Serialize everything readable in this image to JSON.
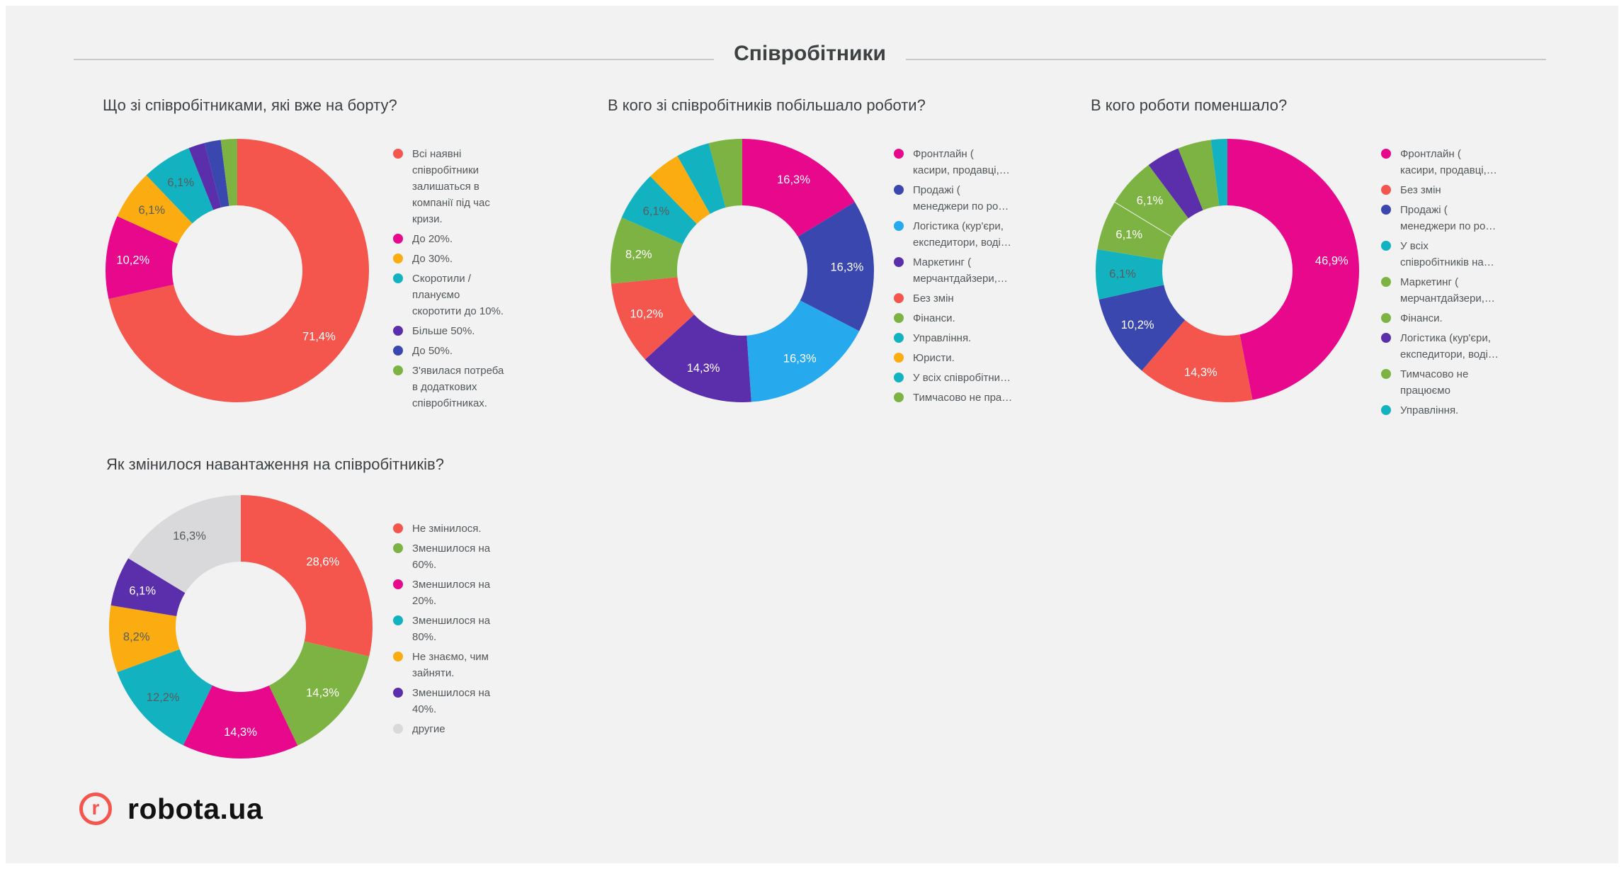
{
  "page": {
    "title": "Співробітники",
    "background": "#f2f2f3"
  },
  "colors": {
    "background": "#f2f2f3",
    "header_rule": "#c9c9ca",
    "chart_title_text": "#3d4144",
    "legend_text": "#53585b",
    "label_light": "#ffffff",
    "label_dark": "#575c5e",
    "brand_red": "#f4564e",
    "logo_text": "#121212"
  },
  "logo": {
    "mark": "r",
    "text": "robota.ua",
    "color": "#f4564e"
  },
  "chart_data": [
    {
      "type": "pie",
      "donut": true,
      "legend_position": "right",
      "unit": "%",
      "title": "Що зі співробітниками, які вже на борту?",
      "slices": [
        {
          "legend": "Всі наявні\nспівробітники\nзалишаться в\nкомпанії під час\nкризи.",
          "value": 71.4,
          "display": "71,4%",
          "color": "#f4564e",
          "label_tone": "light"
        },
        {
          "legend": "До 20%.",
          "value": 10.2,
          "display": "10,2%",
          "color": "#e8088c",
          "label_tone": "light"
        },
        {
          "legend": "До 30%.",
          "value": 6.1,
          "display": "6,1%",
          "color": "#fbac10",
          "label_tone": "dark"
        },
        {
          "legend": "Скоротили /\nплануємо\nскоротити до 10%.",
          "value": 6.1,
          "display": "6,1%",
          "color": "#13b2c1",
          "label_tone": "dark"
        },
        {
          "legend": "Більше 50%.",
          "value": 2.0,
          "display": null,
          "color": "#5b2fac",
          "label_tone": "light"
        },
        {
          "legend": "До 50%.",
          "value": 2.0,
          "display": null,
          "color": "#3a47ae",
          "label_tone": "light"
        },
        {
          "legend": "З'явилася потреба\nв додаткових\nспівробітниках.",
          "value": 2.0,
          "display": null,
          "color": "#7cb342",
          "label_tone": "light"
        }
      ]
    },
    {
      "type": "pie",
      "donut": true,
      "legend_position": "right",
      "unit": "%",
      "title": "В кого зі співробітників побільшало роботи?",
      "slices": [
        {
          "legend": "Фронтлайн (\nкасири, продавці,…",
          "value": 16.3,
          "display": "16,3%",
          "color": "#e8088c",
          "label_tone": "light"
        },
        {
          "legend": "Продажі (\nменеджери по ро…",
          "value": 16.3,
          "display": "16,3%",
          "color": "#3a47ae",
          "label_tone": "light"
        },
        {
          "legend": "Логістика (кур'єри,\nекспедитори, воді…",
          "value": 16.3,
          "display": "16,3%",
          "color": "#27a9ee",
          "label_tone": "light"
        },
        {
          "legend": "Маркетинг (\nмерчантдайзери,…",
          "value": 14.3,
          "display": "14,3%",
          "color": "#5b2fac",
          "label_tone": "light"
        },
        {
          "legend": "Без змін",
          "value": 10.2,
          "display": "10,2%",
          "color": "#f4564e",
          "label_tone": "light"
        },
        {
          "legend": "Фінанси.",
          "value": 8.2,
          "display": "8,2%",
          "color": "#7cb342",
          "label_tone": "light"
        },
        {
          "legend": "Управління.",
          "value": 6.1,
          "display": "6,1%",
          "color": "#13b2c1",
          "label_tone": "dark"
        },
        {
          "legend": "Юристи.",
          "value": 4.1,
          "display": null,
          "color": "#fbac10",
          "label_tone": "dark"
        },
        {
          "legend": "У всіх співробітни…",
          "value": 4.1,
          "display": null,
          "color": "#13b2c1",
          "label_tone": "dark"
        },
        {
          "legend": "Тимчасово не пра…",
          "value": 4.1,
          "display": null,
          "color": "#7cb342",
          "label_tone": "light"
        }
      ]
    },
    {
      "type": "pie",
      "donut": true,
      "legend_position": "right",
      "unit": "%",
      "title": "В кого роботи поменшало?",
      "slices": [
        {
          "legend": "Фронтлайн (\nкасири, продавці,…",
          "value": 46.9,
          "display": "46,9%",
          "color": "#e8088c",
          "label_tone": "light"
        },
        {
          "legend": "Без змін",
          "value": 14.3,
          "display": "14,3%",
          "color": "#f4564e",
          "label_tone": "light"
        },
        {
          "legend": "Продажі (\nменеджери по ро…",
          "value": 10.2,
          "display": "10,2%",
          "color": "#3a47ae",
          "label_tone": "light"
        },
        {
          "legend": "У всіх\nспівробітників на…",
          "value": 6.1,
          "display": "6,1%",
          "color": "#13b2c1",
          "label_tone": "dark"
        },
        {
          "legend": "Маркетинг (\nмерчантдайзери,…",
          "value": 6.1,
          "display": "6,1%",
          "color": "#7cb342",
          "label_tone": "light"
        },
        {
          "legend": "Фінанси.",
          "value": 6.1,
          "display": "6,1%",
          "color": "#7cb342",
          "label_tone": "light"
        },
        {
          "legend": "Логістика (кур'єри,\nекспедитори, воді…",
          "value": 4.1,
          "display": null,
          "color": "#5b2fac",
          "label_tone": "light"
        },
        {
          "legend": "Тимчасово не\nпрацюємо",
          "value": 4.1,
          "display": null,
          "color": "#7cb342",
          "label_tone": "light"
        },
        {
          "legend": "Управління.",
          "value": 2.0,
          "display": null,
          "color": "#13b2c1",
          "label_tone": "dark"
        }
      ]
    },
    {
      "type": "pie",
      "donut": true,
      "legend_position": "right",
      "unit": "%",
      "title": "Як змінилося навантаження на співробітників?",
      "slices": [
        {
          "legend": "Не змінилося.",
          "value": 28.6,
          "display": "28,6%",
          "color": "#f4564e",
          "label_tone": "light"
        },
        {
          "legend": "Зменшилося на\n60%.",
          "value": 14.3,
          "display": "14,3%",
          "color": "#7cb342",
          "label_tone": "light"
        },
        {
          "legend": "Зменшилося на\n20%.",
          "value": 14.3,
          "display": "14,3%",
          "color": "#e8088c",
          "label_tone": "light"
        },
        {
          "legend": "Зменшилося на\n80%.",
          "value": 12.2,
          "display": "12,2%",
          "color": "#13b2c1",
          "label_tone": "dark"
        },
        {
          "legend": "Не знаємо, чим\nзайняти.",
          "value": 8.2,
          "display": "8,2%",
          "color": "#fbac10",
          "label_tone": "dark"
        },
        {
          "legend": "Зменшилося на\n40%.",
          "value": 6.1,
          "display": "6,1%",
          "color": "#5b2fac",
          "label_tone": "light"
        },
        {
          "legend": "другие",
          "value": 16.3,
          "display": "16,3%",
          "color": "#d9d9db",
          "label_tone": "dark"
        }
      ]
    }
  ]
}
